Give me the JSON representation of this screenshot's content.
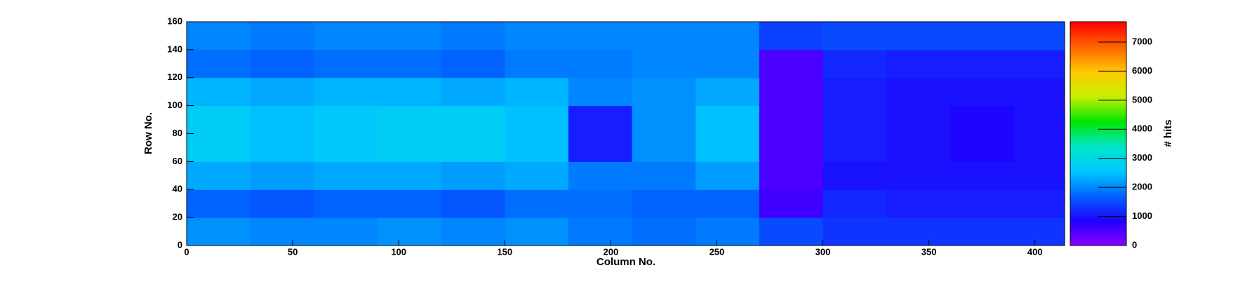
{
  "chart_data": {
    "type": "heatmap",
    "x_label": "Column No.",
    "y_label": "Row No.",
    "z_label": "# hits",
    "xlim": [
      0,
      414
    ],
    "ylim": [
      0,
      160
    ],
    "zlim": [
      0,
      7700
    ],
    "xticks": [
      0,
      50,
      100,
      150,
      200,
      250,
      300,
      350,
      400
    ],
    "yticks": [
      0,
      20,
      40,
      60,
      80,
      100,
      120,
      140,
      160
    ],
    "zticks": [
      0,
      1000,
      2000,
      3000,
      4000,
      5000,
      6000,
      7000
    ],
    "colorscale": [
      "#8a00ff",
      "#1f00ff",
      "#0064ff",
      "#00c8ff",
      "#00e6c8",
      "#00e600",
      "#c8f000",
      "#ffc800",
      "#ff6400",
      "#ff0000"
    ],
    "xbins": [
      0,
      30,
      60,
      90,
      120,
      150,
      180,
      210,
      240,
      270,
      300,
      330,
      360,
      390,
      414
    ],
    "ybins": [
      0,
      20,
      40,
      60,
      80,
      100,
      120,
      140,
      160
    ],
    "z": [
      [
        2100,
        2000,
        2000,
        2100,
        2000,
        2100,
        1900,
        1800,
        1900,
        1500,
        1300,
        1300,
        1300,
        1300
      ],
      [
        1700,
        1600,
        1700,
        1700,
        1600,
        1800,
        1800,
        1700,
        1700,
        600,
        1200,
        1100,
        1100,
        1100
      ],
      [
        2300,
        2200,
        2300,
        2300,
        2200,
        2300,
        1900,
        1900,
        2200,
        500,
        1000,
        1000,
        1000,
        1000
      ],
      [
        2700,
        2500,
        2600,
        2700,
        2700,
        2500,
        1100,
        2100,
        2500,
        500,
        1100,
        1000,
        900,
        1000
      ],
      [
        2700,
        2500,
        2600,
        2700,
        2700,
        2500,
        1100,
        2100,
        2500,
        500,
        1100,
        1000,
        900,
        1000
      ],
      [
        2400,
        2300,
        2400,
        2400,
        2300,
        2400,
        2000,
        2100,
        2300,
        500,
        1100,
        1000,
        1000,
        1000
      ],
      [
        1800,
        1700,
        1800,
        1800,
        1700,
        1900,
        1900,
        2000,
        2000,
        500,
        1200,
        1100,
        1100,
        1100
      ],
      [
        2000,
        1900,
        2000,
        2000,
        1900,
        2000,
        2000,
        2000,
        2000,
        1400,
        1500,
        1500,
        1500,
        1500
      ]
    ]
  }
}
